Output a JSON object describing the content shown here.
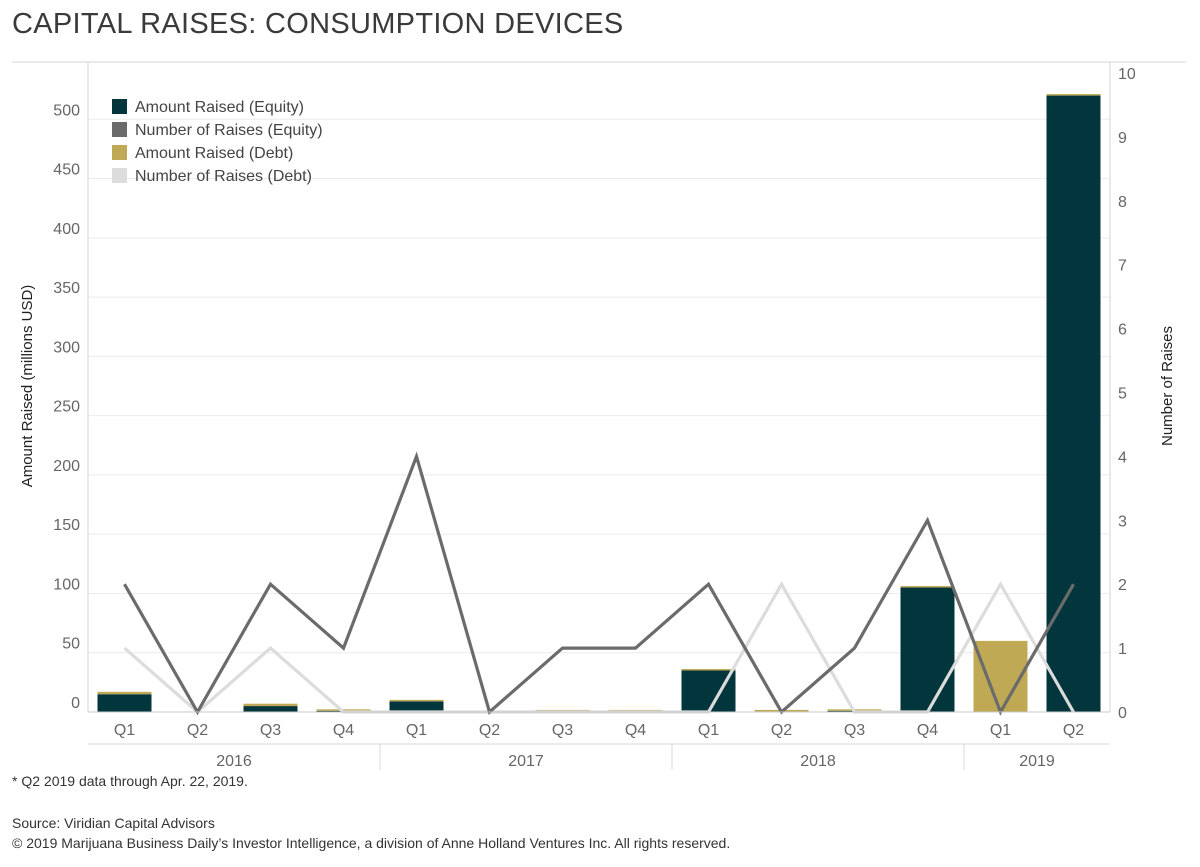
{
  "title": "CAPITAL RAISES: CONSUMPTION DEVICES",
  "footnote": "* Q2 2019 data through Apr. 22, 2019.",
  "source": "Source: Viridian Capital Advisors",
  "copyright": "© 2019 Marijuana Business Daily’s Investor Intelligence, a division of Anne Holland Ventures Inc. All rights reserved.",
  "chart_data": {
    "type": "bar",
    "categories": [
      "Q1",
      "Q2",
      "Q3",
      "Q4",
      "Q1",
      "Q2",
      "Q3",
      "Q4",
      "Q1",
      "Q2",
      "Q3",
      "Q4",
      "Q1",
      "Q2"
    ],
    "years": [
      {
        "label": "2016",
        "start": 0,
        "end": 3
      },
      {
        "label": "2017",
        "start": 4,
        "end": 7
      },
      {
        "label": "2018",
        "start": 8,
        "end": 11
      },
      {
        "label": "2019",
        "start": 12,
        "end": 13
      }
    ],
    "ylabel": "Amount Raised (millions USD)",
    "y2label": "Number of Raises",
    "ylim": [
      0,
      550
    ],
    "y2lim": [
      0,
      10
    ],
    "yticks": [
      0,
      50,
      100,
      150,
      200,
      250,
      300,
      350,
      400,
      450,
      500
    ],
    "y2ticks": [
      0,
      1,
      2,
      3,
      4,
      5,
      6,
      7,
      8,
      9,
      10
    ],
    "grid": true,
    "legend_position": "top-left",
    "series": [
      {
        "name": "Amount Raised (Equity)",
        "kind": "bar",
        "stack": "amount",
        "axis": "left",
        "color": "#02363c",
        "values": [
          15,
          0,
          5,
          1,
          9,
          0,
          0.5,
          0.5,
          35,
          0.5,
          1,
          105,
          0,
          520
        ]
      },
      {
        "name": "Number of Raises (Equity)",
        "kind": "line",
        "axis": "right",
        "color": "#6b6b6b",
        "values": [
          2,
          0,
          2,
          1,
          4,
          0,
          1,
          1,
          2,
          0,
          1,
          3,
          0,
          2
        ]
      },
      {
        "name": "Amount Raised (Debt)",
        "kind": "bar",
        "stack": "amount",
        "axis": "left",
        "color": "#bfa955",
        "values": [
          2,
          0,
          2,
          0.5,
          0.5,
          0,
          0.5,
          0.5,
          0.5,
          1,
          0.5,
          0.5,
          60,
          1
        ]
      },
      {
        "name": "Number of Raises (Debt)",
        "kind": "line",
        "axis": "right",
        "color": "#dcdcdc",
        "values": [
          1,
          0,
          1,
          0,
          0,
          0,
          0,
          0,
          0,
          2,
          0,
          0,
          2,
          0
        ]
      }
    ]
  }
}
